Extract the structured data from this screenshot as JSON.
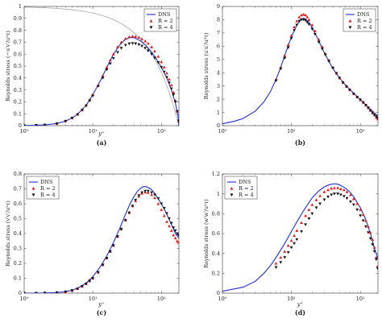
{
  "figure": {
    "legend_labels": {
      "dns": "DNS",
      "r2": "R = 2",
      "r4": "R = 4"
    },
    "colors": {
      "dns": "#1f2fd6",
      "r2": "#e31a1c",
      "r4": "#111111",
      "reference": "#9a9a9a"
    }
  },
  "chart_data": [
    {
      "type": "scatter",
      "panel_label": "(a)",
      "xlabel": "y⁺",
      "ylabel": "Reynolds stress (−u′v′/u²τ)",
      "xscale": "log",
      "xlim": [
        1,
        180
      ],
      "ylim": [
        0,
        1
      ],
      "x_tick_labels": [
        "10⁰",
        "10¹",
        "10²"
      ],
      "y_ticks": [
        0,
        0.1,
        0.2,
        0.3,
        0.4,
        0.5,
        0.6,
        0.7,
        0.8,
        0.9,
        1
      ],
      "y_tick_labels": [
        "0",
        "0.1",
        "0.2",
        "0.3",
        "0.4",
        "0.5",
        "0.6",
        "0.7",
        "0.8",
        "0.9",
        "1"
      ],
      "grid": false,
      "legend_position": "top-right",
      "reference_line": {
        "color": "gray",
        "description_shape": "total shear stress 1 − y⁺/Reτ"
      },
      "series": [
        {
          "name": "DNS",
          "style": "line",
          "x": [
            1,
            1.5,
            2,
            3,
            4,
            5,
            6,
            8,
            10,
            13,
            16,
            20,
            25,
            30,
            35,
            40,
            50,
            60,
            70,
            80,
            100,
            120,
            140,
            160,
            175,
            180
          ],
          "y": [
            0.001,
            0.003,
            0.006,
            0.018,
            0.038,
            0.065,
            0.095,
            0.17,
            0.26,
            0.38,
            0.49,
            0.6,
            0.68,
            0.725,
            0.74,
            0.738,
            0.71,
            0.67,
            0.625,
            0.58,
            0.49,
            0.4,
            0.3,
            0.19,
            0.08,
            0.0
          ]
        },
        {
          "name": "R = 2",
          "style": "markers-up",
          "x": [
            1,
            1.5,
            2,
            3,
            4,
            5,
            6,
            7,
            8,
            9,
            10,
            12,
            14,
            16,
            18,
            20,
            23,
            26,
            30,
            34,
            38,
            42,
            47,
            52,
            58,
            64,
            72,
            80,
            90,
            100,
            110,
            120,
            130,
            140,
            150,
            160,
            170,
            178
          ],
          "y": [
            0.001,
            0.003,
            0.006,
            0.018,
            0.038,
            0.065,
            0.095,
            0.132,
            0.17,
            0.215,
            0.26,
            0.34,
            0.42,
            0.49,
            0.55,
            0.6,
            0.66,
            0.7,
            0.73,
            0.745,
            0.75,
            0.748,
            0.74,
            0.728,
            0.71,
            0.69,
            0.66,
            0.625,
            0.58,
            0.535,
            0.49,
            0.44,
            0.39,
            0.34,
            0.28,
            0.21,
            0.12,
            0.04
          ]
        },
        {
          "name": "R = 4",
          "style": "markers-down",
          "x": [
            1,
            1.5,
            2,
            3,
            4,
            5,
            6,
            7,
            8,
            9,
            10,
            12,
            14,
            16,
            18,
            20,
            23,
            26,
            30,
            34,
            38,
            42,
            47,
            52,
            58,
            64,
            72,
            80,
            90,
            100,
            110,
            120,
            130,
            140,
            150,
            160,
            170,
            178
          ],
          "y": [
            0.001,
            0.003,
            0.006,
            0.018,
            0.038,
            0.064,
            0.094,
            0.13,
            0.167,
            0.21,
            0.25,
            0.33,
            0.4,
            0.47,
            0.52,
            0.565,
            0.615,
            0.65,
            0.675,
            0.687,
            0.69,
            0.688,
            0.68,
            0.668,
            0.65,
            0.628,
            0.6,
            0.568,
            0.53,
            0.49,
            0.45,
            0.405,
            0.36,
            0.31,
            0.26,
            0.2,
            0.12,
            0.04
          ]
        }
      ]
    },
    {
      "type": "scatter",
      "panel_label": "(b)",
      "xlabel": "",
      "ylabel": "Reynolds stress (u′u′/u²τ)",
      "xscale": "log",
      "xlim": [
        1,
        180
      ],
      "ylim": [
        0,
        9
      ],
      "x_tick_labels": [
        "10⁰",
        "10¹",
        "10²"
      ],
      "y_ticks": [
        0,
        1,
        2,
        3,
        4,
        5,
        6,
        7,
        8,
        9
      ],
      "y_tick_labels": [
        "0",
        "1",
        "2",
        "3",
        "4",
        "5",
        "6",
        "7",
        "8",
        "9"
      ],
      "grid": false,
      "legend_position": "top-right",
      "series": [
        {
          "name": "DNS",
          "style": "line",
          "x": [
            1,
            1.5,
            2,
            3,
            4,
            5,
            6,
            7,
            8,
            10,
            12,
            14,
            15,
            16,
            18,
            20,
            25,
            30,
            40,
            50,
            60,
            80,
            100,
            130,
            160,
            180
          ],
          "y": [
            0.15,
            0.33,
            0.55,
            1.1,
            1.8,
            2.6,
            3.5,
            4.4,
            5.3,
            6.7,
            7.6,
            8.05,
            8.1,
            8.05,
            7.8,
            7.4,
            6.4,
            5.5,
            4.3,
            3.6,
            3.1,
            2.45,
            1.95,
            1.4,
            0.95,
            0.75
          ]
        },
        {
          "name": "R = 2",
          "style": "markers-up",
          "x": [
            6,
            7,
            8,
            9,
            10,
            11,
            12,
            13,
            14,
            15,
            16,
            17,
            18,
            20,
            22,
            25,
            28,
            31,
            35,
            40,
            45,
            50,
            56,
            63,
            70,
            80,
            90,
            100,
            110,
            120,
            130,
            140,
            150,
            160,
            170,
            178
          ],
          "y": [
            3.5,
            4.4,
            5.3,
            6.1,
            6.8,
            7.45,
            7.9,
            8.2,
            8.35,
            8.4,
            8.35,
            8.2,
            8.0,
            7.6,
            7.15,
            6.5,
            5.95,
            5.45,
            4.95,
            4.4,
            3.95,
            3.6,
            3.25,
            2.95,
            2.7,
            2.4,
            2.15,
            1.95,
            1.75,
            1.55,
            1.35,
            1.15,
            0.95,
            0.8,
            0.62,
            0.5
          ]
        },
        {
          "name": "R = 4",
          "style": "markers-down",
          "x": [
            6,
            7,
            8,
            9,
            10,
            11,
            12,
            13,
            14,
            15,
            16,
            17,
            18,
            20,
            22,
            25,
            28,
            31,
            35,
            40,
            45,
            50,
            56,
            63,
            70,
            80,
            90,
            100,
            110,
            120,
            130,
            140,
            150,
            160,
            170,
            178
          ],
          "y": [
            3.4,
            4.3,
            5.1,
            5.9,
            6.6,
            7.2,
            7.6,
            7.9,
            8.0,
            8.0,
            7.95,
            7.8,
            7.65,
            7.3,
            6.9,
            6.3,
            5.8,
            5.35,
            4.85,
            4.35,
            3.95,
            3.6,
            3.25,
            2.95,
            2.7,
            2.4,
            2.15,
            1.95,
            1.75,
            1.55,
            1.35,
            1.15,
            0.97,
            0.82,
            0.68,
            0.58
          ]
        }
      ]
    },
    {
      "type": "scatter",
      "panel_label": "(c)",
      "xlabel": "y⁺",
      "ylabel": "Reynolds stress (v′v′/u²τ)",
      "xscale": "log",
      "xlim": [
        1,
        180
      ],
      "ylim": [
        0,
        0.8
      ],
      "x_tick_labels": [
        "10⁰",
        "10¹",
        "10²"
      ],
      "y_ticks": [
        0,
        0.1,
        0.2,
        0.3,
        0.4,
        0.5,
        0.6,
        0.7,
        0.8
      ],
      "y_tick_labels": [
        "0",
        "0.1",
        "0.2",
        "0.3",
        "0.4",
        "0.5",
        "0.6",
        "0.7",
        "0.8"
      ],
      "grid": false,
      "legend_position": "top-left",
      "series": [
        {
          "name": "DNS",
          "style": "line",
          "x": [
            1,
            2,
            3,
            4,
            5,
            6,
            8,
            10,
            13,
            16,
            20,
            25,
            30,
            35,
            40,
            45,
            50,
            55,
            60,
            70,
            80,
            100,
            120,
            140,
            160,
            180
          ],
          "y": [
            0.0,
            0.001,
            0.004,
            0.01,
            0.02,
            0.033,
            0.068,
            0.11,
            0.18,
            0.25,
            0.34,
            0.44,
            0.53,
            0.6,
            0.65,
            0.685,
            0.705,
            0.715,
            0.715,
            0.7,
            0.67,
            0.6,
            0.53,
            0.46,
            0.4,
            0.37
          ]
        },
        {
          "name": "R = 2",
          "style": "markers-up",
          "x": [
            1,
            1.5,
            2,
            3,
            4,
            5,
            6,
            7,
            8,
            9,
            10,
            12,
            14,
            16,
            18,
            20,
            23,
            26,
            30,
            34,
            38,
            42,
            47,
            52,
            58,
            64,
            72,
            80,
            90,
            100,
            110,
            120,
            130,
            140,
            150,
            160,
            170,
            178
          ],
          "y": [
            0.0,
            0.0,
            0.001,
            0.004,
            0.009,
            0.018,
            0.03,
            0.046,
            0.063,
            0.082,
            0.1,
            0.14,
            0.19,
            0.235,
            0.28,
            0.32,
            0.38,
            0.43,
            0.49,
            0.54,
            0.585,
            0.62,
            0.65,
            0.67,
            0.678,
            0.675,
            0.66,
            0.64,
            0.6,
            0.56,
            0.52,
            0.48,
            0.45,
            0.42,
            0.39,
            0.37,
            0.35,
            0.34
          ]
        },
        {
          "name": "R = 4",
          "style": "markers-down",
          "x": [
            1,
            1.5,
            2,
            3,
            4,
            5,
            6,
            7,
            8,
            9,
            10,
            12,
            14,
            16,
            18,
            20,
            23,
            26,
            30,
            34,
            38,
            42,
            47,
            52,
            58,
            64,
            72,
            80,
            90,
            100,
            110,
            120,
            130,
            140,
            150,
            160,
            170,
            178
          ],
          "y": [
            0.0,
            0.0,
            0.001,
            0.004,
            0.009,
            0.018,
            0.03,
            0.046,
            0.063,
            0.082,
            0.1,
            0.14,
            0.19,
            0.235,
            0.28,
            0.32,
            0.38,
            0.43,
            0.49,
            0.54,
            0.585,
            0.625,
            0.655,
            0.675,
            0.685,
            0.685,
            0.675,
            0.66,
            0.635,
            0.6,
            0.57,
            0.535,
            0.5,
            0.47,
            0.44,
            0.42,
            0.4,
            0.39
          ]
        }
      ]
    },
    {
      "type": "scatter",
      "panel_label": "(d)",
      "xlabel": "y⁺",
      "ylabel": "Reynolds stress (w′w′/u²τ)",
      "xscale": "log",
      "xlim": [
        1,
        180
      ],
      "ylim": [
        0,
        1.2
      ],
      "x_tick_labels": [
        "10⁰",
        "10¹",
        "10²"
      ],
      "y_ticks": [
        0,
        0.2,
        0.4,
        0.6,
        0.8,
        1,
        1.2
      ],
      "y_tick_labels": [
        "0",
        "0.2",
        "0.4",
        "0.6",
        "0.8",
        "1",
        "1.2"
      ],
      "grid": false,
      "legend_position": "top-left",
      "series": [
        {
          "name": "DNS",
          "style": "line",
          "x": [
            1,
            2,
            3,
            4,
            5,
            6,
            8,
            10,
            13,
            16,
            20,
            25,
            30,
            35,
            40,
            45,
            50,
            60,
            70,
            80,
            100,
            120,
            140,
            160,
            180
          ],
          "y": [
            0.02,
            0.06,
            0.12,
            0.2,
            0.28,
            0.36,
            0.5,
            0.62,
            0.76,
            0.86,
            0.96,
            1.03,
            1.07,
            1.09,
            1.1,
            1.1,
            1.09,
            1.06,
            1.02,
            0.97,
            0.86,
            0.74,
            0.6,
            0.45,
            0.35
          ]
        },
        {
          "name": "R = 2",
          "style": "markers-up",
          "x": [
            6,
            7,
            8,
            9,
            10,
            11,
            12,
            14,
            16,
            18,
            20,
            23,
            26,
            30,
            34,
            38,
            42,
            47,
            52,
            58,
            64,
            72,
            80,
            90,
            100,
            110,
            120,
            130,
            140,
            150,
            160,
            170,
            178
          ],
          "y": [
            0.3,
            0.36,
            0.42,
            0.48,
            0.53,
            0.58,
            0.63,
            0.71,
            0.78,
            0.84,
            0.89,
            0.94,
            0.98,
            1.02,
            1.04,
            1.055,
            1.06,
            1.06,
            1.05,
            1.04,
            1.02,
            0.99,
            0.95,
            0.9,
            0.84,
            0.79,
            0.73,
            0.67,
            0.61,
            0.54,
            0.46,
            0.36,
            0.27
          ]
        },
        {
          "name": "R = 4",
          "style": "markers-down",
          "x": [
            6,
            7,
            8,
            9,
            10,
            11,
            12,
            14,
            16,
            18,
            20,
            23,
            26,
            30,
            34,
            38,
            42,
            47,
            52,
            58,
            64,
            72,
            80,
            90,
            100,
            110,
            120,
            130,
            140,
            150,
            160,
            170,
            178
          ],
          "y": [
            0.26,
            0.31,
            0.36,
            0.41,
            0.46,
            0.5,
            0.54,
            0.62,
            0.69,
            0.75,
            0.8,
            0.86,
            0.9,
            0.94,
            0.97,
            0.99,
            1.0,
            1.0,
            0.99,
            0.975,
            0.955,
            0.92,
            0.89,
            0.84,
            0.78,
            0.73,
            0.67,
            0.61,
            0.55,
            0.49,
            0.42,
            0.34,
            0.25
          ]
        }
      ]
    }
  ]
}
